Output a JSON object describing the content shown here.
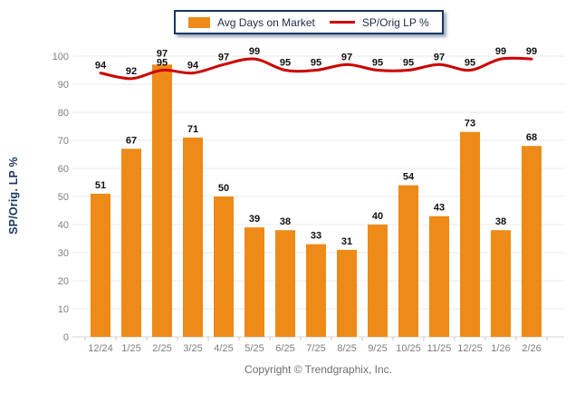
{
  "chart_data": {
    "type": "combo-bar-line",
    "title": "",
    "categories": [
      "12/24",
      "1/25",
      "2/25",
      "3/25",
      "4/25",
      "5/25",
      "6/25",
      "7/25",
      "8/25",
      "9/25",
      "10/25",
      "11/25",
      "12/25",
      "1/26",
      "2/26"
    ],
    "series": [
      {
        "name": "Avg Days on Market",
        "type": "bar",
        "color": "#EE8A17",
        "values": [
          51,
          67,
          97,
          71,
          50,
          39,
          38,
          33,
          31,
          40,
          54,
          43,
          73,
          38,
          68
        ]
      },
      {
        "name": "SP/Orig LP %",
        "type": "line",
        "color": "#CC0000",
        "values": [
          94,
          92,
          95,
          94,
          97,
          99,
          95,
          95,
          97,
          95,
          95,
          97,
          95,
          99,
          99
        ]
      }
    ],
    "ylabel": "SP/Orig. LP %",
    "xlabel": "",
    "ylim": [
      0,
      100
    ],
    "ytick_step": 10,
    "grid": true,
    "data_labels": true,
    "legend_position": "top-center"
  },
  "legend": {
    "items": [
      {
        "label": "Avg Days on Market",
        "swatch": "bar-swatch"
      },
      {
        "label": "SP/Orig LP %",
        "swatch": "line-swatch"
      }
    ]
  },
  "footer": {
    "text": "Copyright © Trendgraphix, Inc."
  },
  "colors": {
    "bar": "#EE8A17",
    "line": "#CC0000",
    "grid": "#E8E8E8",
    "axis": "#D4D4D4",
    "tick": "#C4C4C4",
    "axis_text": "#7F7F7F",
    "data_label_text": "#111111",
    "legend_border": "#17375E",
    "y_title_text": "#17375E"
  }
}
